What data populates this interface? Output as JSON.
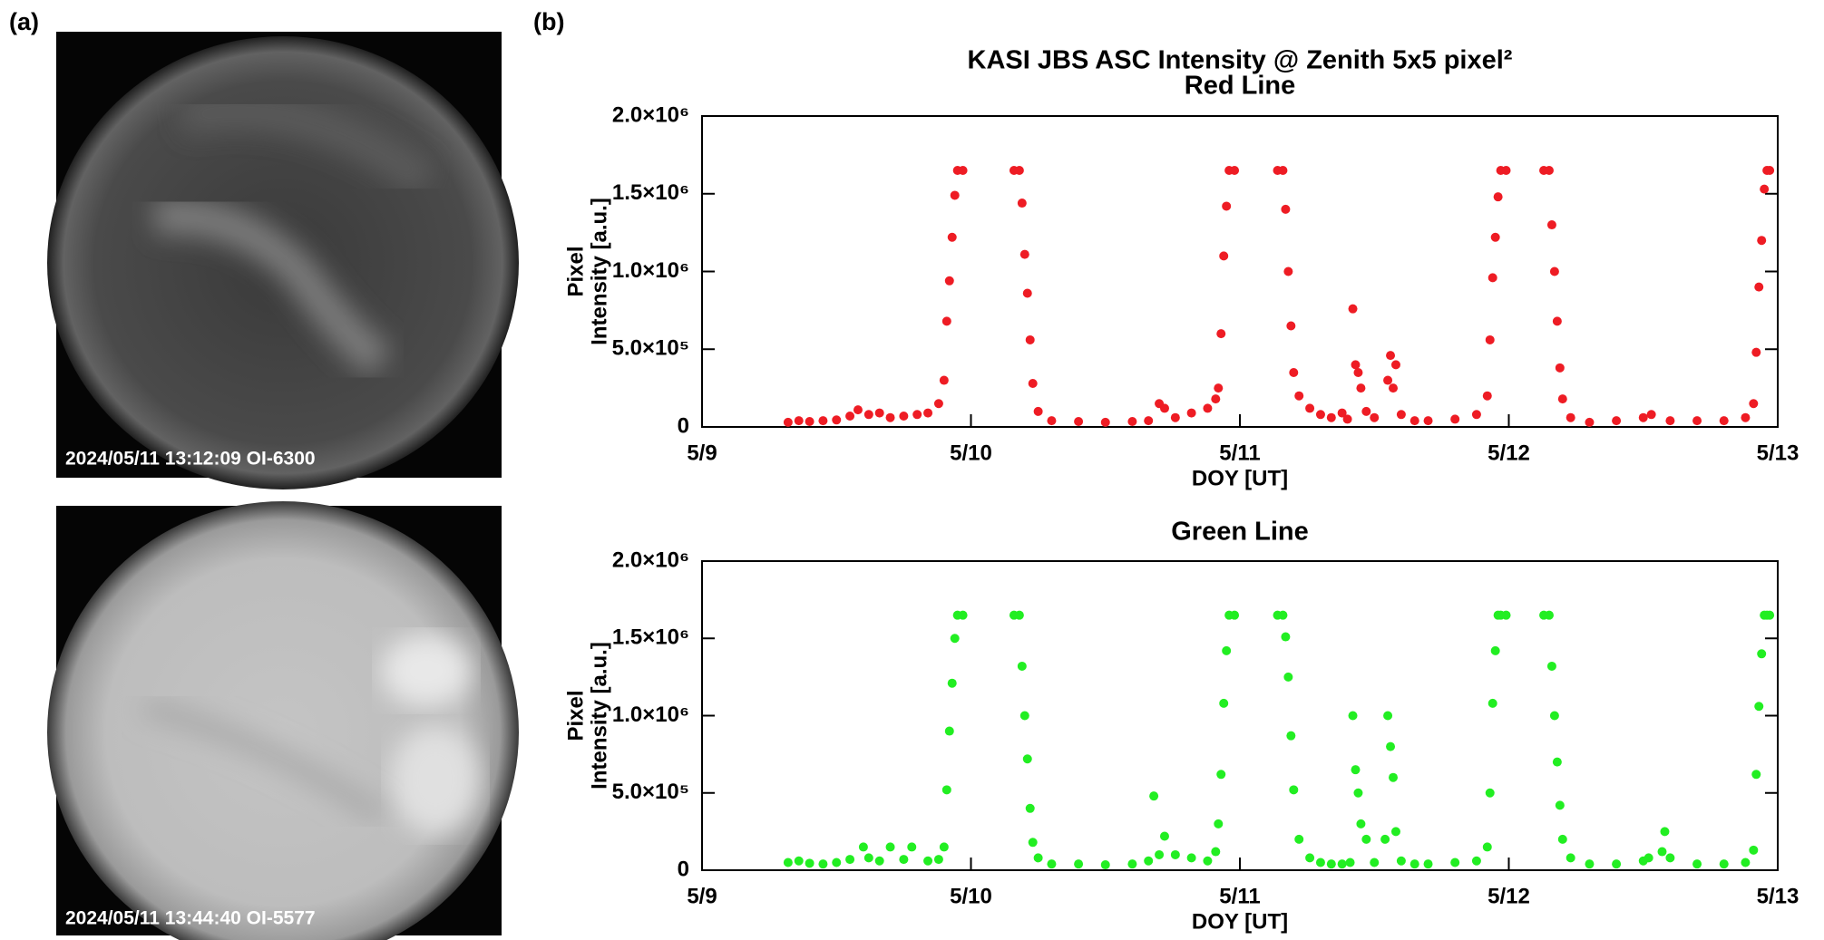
{
  "panel_labels": [
    "(a)",
    "(b)"
  ],
  "images": [
    {
      "caption": "2024/05/11 13:12:09 OI-6300"
    },
    {
      "caption": "2024/05/11 13:44:40 OI-5577"
    }
  ],
  "title": "KASI JBS ASC Intensity @ Zenith 5x5 pixel²",
  "chart_data": [
    {
      "type": "scatter",
      "title": "Red Line",
      "xlabel": "DOY [UT]",
      "ylabel": [
        "Pixel",
        "Intensity [a.u.]"
      ],
      "color": "#ee1c24",
      "xlim": [
        130,
        134
      ],
      "xticks": [
        {
          "value": 130,
          "label": "5/9"
        },
        {
          "value": 131,
          "label": "5/10"
        },
        {
          "value": 132,
          "label": "5/11"
        },
        {
          "value": 133,
          "label": "5/12"
        },
        {
          "value": 134,
          "label": "5/13"
        }
      ],
      "ylim": [
        0,
        2000000
      ],
      "yticks": [
        0,
        {
          "value": 500000,
          "label": "5.0×10⁵"
        },
        {
          "value": 1000000,
          "label": "1.0×10⁶"
        },
        {
          "value": 1500000,
          "label": "1.5×10⁶"
        },
        {
          "value": 2000000,
          "label": "2.0×10⁶"
        }
      ],
      "x": [
        130.32,
        130.36,
        130.4,
        130.45,
        130.5,
        130.55,
        130.58,
        130.62,
        130.66,
        130.7,
        130.75,
        130.8,
        130.84,
        130.88,
        130.9,
        130.91,
        130.92,
        130.93,
        130.94,
        130.95,
        130.97,
        131.16,
        131.18,
        131.19,
        131.2,
        131.21,
        131.22,
        131.23,
        131.25,
        131.3,
        131.4,
        131.5,
        131.6,
        131.66,
        131.7,
        131.72,
        131.76,
        131.82,
        131.88,
        131.91,
        131.92,
        131.93,
        131.94,
        131.95,
        131.96,
        131.98,
        132.14,
        132.16,
        132.17,
        132.18,
        132.19,
        132.2,
        132.22,
        132.26,
        132.3,
        132.34,
        132.38,
        132.4,
        132.42,
        132.43,
        132.44,
        132.45,
        132.47,
        132.5,
        132.55,
        132.56,
        132.57,
        132.58,
        132.6,
        132.65,
        132.7,
        132.8,
        132.88,
        132.92,
        132.93,
        132.94,
        132.95,
        132.96,
        132.97,
        132.99,
        133.13,
        133.15,
        133.16,
        133.17,
        133.18,
        133.19,
        133.2,
        133.23,
        133.3,
        133.4,
        133.5,
        133.53,
        133.6,
        133.7,
        133.8,
        133.88,
        133.91,
        133.92,
        133.93,
        133.94,
        133.95,
        133.96,
        133.97
      ],
      "values": [
        30000,
        40000,
        35000,
        40000,
        45000,
        70000,
        110000,
        80000,
        90000,
        60000,
        70000,
        80000,
        90000,
        150000,
        300000,
        680000,
        940000,
        1220000,
        1490000,
        1650000,
        1650000,
        1650000,
        1650000,
        1440000,
        1110000,
        860000,
        560000,
        280000,
        100000,
        40000,
        35000,
        30000,
        35000,
        40000,
        150000,
        120000,
        60000,
        90000,
        120000,
        180000,
        250000,
        600000,
        1100000,
        1420000,
        1650000,
        1650000,
        1650000,
        1650000,
        1400000,
        1000000,
        650000,
        350000,
        200000,
        120000,
        80000,
        60000,
        90000,
        50000,
        760000,
        400000,
        350000,
        250000,
        100000,
        60000,
        300000,
        460000,
        250000,
        400000,
        80000,
        40000,
        40000,
        50000,
        80000,
        200000,
        560000,
        960000,
        1220000,
        1480000,
        1650000,
        1650000,
        1650000,
        1650000,
        1300000,
        1000000,
        680000,
        380000,
        180000,
        60000,
        30000,
        40000,
        60000,
        80000,
        40000,
        40000,
        40000,
        60000,
        150000,
        480000,
        900000,
        1200000,
        1530000,
        1650000,
        1650000
      ]
    },
    {
      "type": "scatter",
      "title": "Green Line",
      "xlabel": "DOY [UT]",
      "ylabel": [
        "Pixel",
        "Intensity [a.u.]"
      ],
      "color": "#22ee22",
      "xlim": [
        130,
        134
      ],
      "xticks": [
        {
          "value": 130,
          "label": "5/9"
        },
        {
          "value": 131,
          "label": "5/10"
        },
        {
          "value": 132,
          "label": "5/11"
        },
        {
          "value": 133,
          "label": "5/12"
        },
        {
          "value": 134,
          "label": "5/13"
        }
      ],
      "ylim": [
        0,
        2000000
      ],
      "yticks": [
        0,
        {
          "value": 500000,
          "label": "5.0×10⁵"
        },
        {
          "value": 1000000,
          "label": "1.0×10⁶"
        },
        {
          "value": 1500000,
          "label": "1.5×10⁶"
        },
        {
          "value": 2000000,
          "label": "2.0×10⁶"
        }
      ],
      "x": [
        130.32,
        130.36,
        130.4,
        130.45,
        130.5,
        130.55,
        130.6,
        130.62,
        130.66,
        130.7,
        130.75,
        130.78,
        130.84,
        130.88,
        130.9,
        130.91,
        130.92,
        130.93,
        130.94,
        130.95,
        130.97,
        131.16,
        131.18,
        131.19,
        131.2,
        131.21,
        131.22,
        131.23,
        131.25,
        131.3,
        131.4,
        131.5,
        131.6,
        131.66,
        131.68,
        131.7,
        131.72,
        131.76,
        131.82,
        131.88,
        131.91,
        131.92,
        131.93,
        131.94,
        131.95,
        131.96,
        131.98,
        132.14,
        132.16,
        132.17,
        132.18,
        132.19,
        132.2,
        132.22,
        132.26,
        132.3,
        132.34,
        132.38,
        132.41,
        132.42,
        132.43,
        132.44,
        132.45,
        132.47,
        132.5,
        132.54,
        132.55,
        132.56,
        132.57,
        132.58,
        132.6,
        132.65,
        132.7,
        132.8,
        132.88,
        132.92,
        132.93,
        132.94,
        132.95,
        132.96,
        132.97,
        132.99,
        133.13,
        133.15,
        133.16,
        133.17,
        133.18,
        133.19,
        133.2,
        133.23,
        133.3,
        133.4,
        133.5,
        133.52,
        133.57,
        133.58,
        133.6,
        133.7,
        133.8,
        133.88,
        133.91,
        133.92,
        133.93,
        133.94,
        133.95,
        133.96,
        133.97
      ],
      "values": [
        50000,
        60000,
        45000,
        40000,
        50000,
        70000,
        150000,
        80000,
        60000,
        150000,
        70000,
        150000,
        60000,
        70000,
        150000,
        520000,
        900000,
        1210000,
        1500000,
        1650000,
        1650000,
        1650000,
        1650000,
        1320000,
        1000000,
        720000,
        400000,
        180000,
        80000,
        40000,
        40000,
        35000,
        40000,
        60000,
        480000,
        100000,
        220000,
        100000,
        80000,
        60000,
        120000,
        300000,
        620000,
        1080000,
        1420000,
        1650000,
        1650000,
        1650000,
        1650000,
        1510000,
        1250000,
        870000,
        520000,
        200000,
        80000,
        50000,
        40000,
        40000,
        50000,
        1000000,
        650000,
        500000,
        300000,
        200000,
        50000,
        200000,
        1000000,
        800000,
        600000,
        250000,
        60000,
        40000,
        40000,
        50000,
        60000,
        150000,
        500000,
        1080000,
        1420000,
        1650000,
        1650000,
        1650000,
        1650000,
        1650000,
        1320000,
        1000000,
        700000,
        420000,
        200000,
        80000,
        40000,
        40000,
        60000,
        80000,
        120000,
        250000,
        80000,
        40000,
        40000,
        50000,
        130000,
        620000,
        1060000,
        1400000,
        1650000,
        1650000,
        1650000
      ]
    }
  ]
}
